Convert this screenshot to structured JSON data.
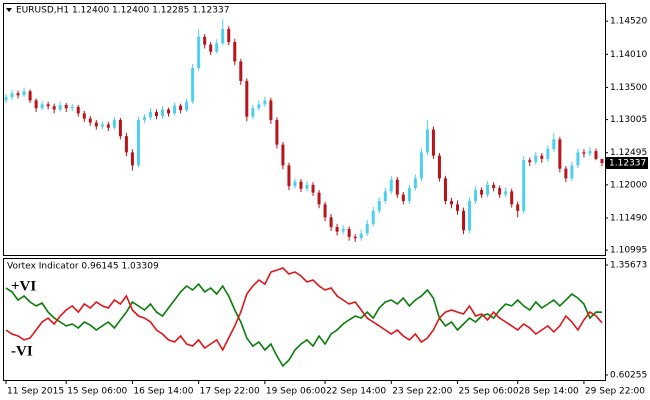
{
  "chart_data": [
    {
      "type": "candlestick",
      "title": "EURUSD,H1  1.12400 1.12400 1.12285 1.12337",
      "up_color": "#4dcfee",
      "down_color": "#b8141a",
      "ylim": [
        1.1092,
        1.148
      ],
      "yticks": [
        {
          "value": 1.1452,
          "label": "1.14520"
        },
        {
          "value": 1.1401,
          "label": "1.14010"
        },
        {
          "value": 1.135,
          "label": "1.13500"
        },
        1.13005,
        1.12495,
        {
          "value": 1.12,
          "label": "1.12000"
        },
        {
          "value": 1.1149,
          "label": "1.11490"
        },
        1.10995
      ],
      "current_price": 1.12337,
      "categories": [
        "11 Sep 2015",
        null,
        null,
        null,
        null,
        null,
        null,
        null,
        null,
        null,
        "15 Sep 06:00",
        null,
        null,
        null,
        null,
        null,
        null,
        null,
        null,
        null,
        null,
        "16 Sep 14:00",
        null,
        null,
        null,
        null,
        null,
        null,
        null,
        null,
        null,
        null,
        "17 Sep 22:00",
        null,
        null,
        null,
        null,
        null,
        null,
        null,
        null,
        null,
        null,
        "19 Sep 06:00",
        null,
        null,
        null,
        null,
        null,
        null,
        null,
        null,
        null,
        "22 Sep 14:00",
        null,
        null,
        null,
        null,
        null,
        null,
        null,
        null,
        null,
        null,
        "23 Sep 22:00",
        null,
        null,
        null,
        null,
        null,
        null,
        null,
        null,
        null,
        null,
        "25 Sep 06:00",
        null,
        null,
        null,
        null,
        null,
        null,
        null,
        null,
        null,
        "28 Sep 14:00",
        null,
        null,
        null,
        null,
        null,
        null,
        null,
        null,
        null,
        null,
        "29 Sep 22:00",
        null,
        null,
        null
      ],
      "candles": [
        [
          1.133,
          1.134,
          1.1326,
          1.1335
        ],
        [
          1.1335,
          1.1346,
          1.1331,
          1.1341
        ],
        [
          1.1341,
          1.1345,
          1.1333,
          1.1338
        ],
        [
          1.1338,
          1.135,
          1.1335,
          1.1344
        ],
        [
          1.1344,
          1.1347,
          1.1326,
          1.133
        ],
        [
          1.133,
          1.1333,
          1.1312,
          1.1318
        ],
        [
          1.1318,
          1.1329,
          1.1315,
          1.1324
        ],
        [
          1.1324,
          1.1328,
          1.1316,
          1.1321
        ],
        [
          1.1321,
          1.1325,
          1.131,
          1.1316
        ],
        [
          1.1316,
          1.1328,
          1.1313,
          1.1323
        ],
        [
          1.1323,
          1.1326,
          1.1312,
          1.1318
        ],
        [
          1.1318,
          1.1325,
          1.1314,
          1.132
        ],
        [
          1.132,
          1.1323,
          1.1305,
          1.131
        ],
        [
          1.131,
          1.1314,
          1.1297,
          1.1302
        ],
        [
          1.1302,
          1.1306,
          1.1291,
          1.1296
        ],
        [
          1.1296,
          1.13,
          1.1285,
          1.129
        ],
        [
          1.129,
          1.1298,
          1.1286,
          1.1293
        ],
        [
          1.1293,
          1.1297,
          1.1283,
          1.1288
        ],
        [
          1.1288,
          1.1305,
          1.1285,
          1.13
        ],
        [
          1.13,
          1.1303,
          1.127,
          1.1275
        ],
        [
          1.1275,
          1.128,
          1.1244,
          1.125
        ],
        [
          1.125,
          1.1255,
          1.1222,
          1.123
        ],
        [
          1.123,
          1.1305,
          1.1227,
          1.13
        ],
        [
          1.13,
          1.1309,
          1.1295,
          1.1304
        ],
        [
          1.1304,
          1.1318,
          1.13,
          1.1312
        ],
        [
          1.1312,
          1.1316,
          1.1301,
          1.1306
        ],
        [
          1.1306,
          1.1321,
          1.1302,
          1.1316
        ],
        [
          1.1316,
          1.1319,
          1.1305,
          1.131
        ],
        [
          1.131,
          1.1327,
          1.1307,
          1.1322
        ],
        [
          1.1322,
          1.1325,
          1.131,
          1.1315
        ],
        [
          1.1315,
          1.1333,
          1.1312,
          1.1328
        ],
        [
          1.1328,
          1.1386,
          1.1325,
          1.138
        ],
        [
          1.138,
          1.144,
          1.1376,
          1.1428
        ],
        [
          1.1428,
          1.1432,
          1.141,
          1.1416
        ],
        [
          1.1416,
          1.142,
          1.14,
          1.1405
        ],
        [
          1.1405,
          1.1424,
          1.1402,
          1.1418
        ],
        [
          1.1418,
          1.1455,
          1.1415,
          1.144
        ],
        [
          1.144,
          1.1444,
          1.1415,
          1.142
        ],
        [
          1.142,
          1.1425,
          1.1384,
          1.139
        ],
        [
          1.139,
          1.1394,
          1.1354,
          1.136
        ],
        [
          1.136,
          1.1364,
          1.1298,
          1.1305
        ],
        [
          1.1305,
          1.1323,
          1.1301,
          1.1318
        ],
        [
          1.1318,
          1.133,
          1.1314,
          1.1324
        ],
        [
          1.1324,
          1.1336,
          1.132,
          1.133
        ],
        [
          1.133,
          1.1334,
          1.1294,
          1.13
        ],
        [
          1.13,
          1.1304,
          1.1256,
          1.1262
        ],
        [
          1.1262,
          1.1266,
          1.1224,
          1.123
        ],
        [
          1.123,
          1.1234,
          1.1192,
          1.1198
        ],
        [
          1.1198,
          1.121,
          1.1194,
          1.1205
        ],
        [
          1.1205,
          1.1209,
          1.1189,
          1.1194
        ],
        [
          1.1194,
          1.1206,
          1.119,
          1.12
        ],
        [
          1.12,
          1.1204,
          1.1183,
          1.1188
        ],
        [
          1.1188,
          1.1192,
          1.1164,
          1.117
        ],
        [
          1.117,
          1.1174,
          1.1144,
          1.115
        ],
        [
          1.115,
          1.1155,
          1.1129,
          1.1135
        ],
        [
          1.1135,
          1.114,
          1.1122,
          1.1128
        ],
        [
          1.1128,
          1.1138,
          1.1124,
          1.1132
        ],
        [
          1.1132,
          1.1136,
          1.1114,
          1.112
        ],
        [
          1.112,
          1.1124,
          1.1112,
          1.1118
        ],
        [
          1.1118,
          1.1131,
          1.1114,
          1.1125
        ],
        [
          1.1125,
          1.1146,
          1.1121,
          1.114
        ],
        [
          1.114,
          1.1166,
          1.1136,
          1.116
        ],
        [
          1.116,
          1.1181,
          1.1156,
          1.1175
        ],
        [
          1.1175,
          1.1196,
          1.1171,
          1.119
        ],
        [
          1.119,
          1.1214,
          1.1186,
          1.1208
        ],
        [
          1.1208,
          1.1212,
          1.118,
          1.1185
        ],
        [
          1.1185,
          1.1189,
          1.117,
          1.1175
        ],
        [
          1.1175,
          1.12,
          1.1171,
          1.1195
        ],
        [
          1.1195,
          1.1216,
          1.1191,
          1.121
        ],
        [
          1.121,
          1.1256,
          1.1206,
          1.125
        ],
        [
          1.125,
          1.13,
          1.1246,
          1.1285
        ],
        [
          1.1285,
          1.129,
          1.124,
          1.1245
        ],
        [
          1.1245,
          1.1249,
          1.1205,
          1.121
        ],
        [
          1.121,
          1.1214,
          1.117,
          1.1175
        ],
        [
          1.1175,
          1.118,
          1.1164,
          1.117
        ],
        [
          1.117,
          1.1176,
          1.1154,
          1.116
        ],
        [
          1.116,
          1.1165,
          1.1124,
          1.113
        ],
        [
          1.113,
          1.1181,
          1.1126,
          1.1175
        ],
        [
          1.1175,
          1.1198,
          1.1171,
          1.1192
        ],
        [
          1.1192,
          1.1196,
          1.118,
          1.1185
        ],
        [
          1.1185,
          1.1206,
          1.1181,
          1.12
        ],
        [
          1.12,
          1.1204,
          1.119,
          1.1195
        ],
        [
          1.1195,
          1.1199,
          1.118,
          1.1185
        ],
        [
          1.1185,
          1.1196,
          1.1181,
          1.119
        ],
        [
          1.119,
          1.1194,
          1.1165,
          1.117
        ],
        [
          1.117,
          1.1174,
          1.115,
          1.116
        ],
        [
          1.116,
          1.1244,
          1.1156,
          1.1238
        ],
        [
          1.1238,
          1.1242,
          1.1229,
          1.1235
        ],
        [
          1.1235,
          1.1251,
          1.1231,
          1.1245
        ],
        [
          1.1245,
          1.1249,
          1.1234,
          1.124
        ],
        [
          1.124,
          1.1261,
          1.1236,
          1.1255
        ],
        [
          1.1255,
          1.128,
          1.1251,
          1.127
        ],
        [
          1.127,
          1.1274,
          1.1219,
          1.1225
        ],
        [
          1.1225,
          1.1229,
          1.1204,
          1.121
        ],
        [
          1.121,
          1.1236,
          1.1206,
          1.123
        ],
        [
          1.123,
          1.1256,
          1.1226,
          1.125
        ],
        [
          1.125,
          1.1255,
          1.1242,
          1.1248
        ],
        [
          1.1248,
          1.1258,
          1.1244,
          1.1252
        ],
        [
          1.1252,
          1.1256,
          1.1238,
          1.124
        ],
        [
          1.124,
          1.124,
          1.12285,
          1.12337
        ]
      ]
    },
    {
      "type": "line",
      "title": "Vortex Indicator 0.96145 1.03309",
      "ylim": [
        0.5683,
        1.4047
      ],
      "yticks": [
        1.35673,
        0.60255
      ],
      "series": [
        {
          "name": "+VI",
          "color": "#0a7d0a",
          "values": [
            1.199,
            1.172,
            1.117,
            1.144,
            1.103,
            1.076,
            1.096,
            1.034,
            0.993,
            0.966,
            0.939,
            0.952,
            0.925,
            0.966,
            0.945,
            0.911,
            0.939,
            0.966,
            0.925,
            0.98,
            1.034,
            1.103,
            1.076,
            1.048,
            1.089,
            1.034,
            1.007,
            1.062,
            1.117,
            1.172,
            1.213,
            1.185,
            1.226,
            1.172,
            1.199,
            1.158,
            1.213,
            1.144,
            1.048,
            0.966,
            0.856,
            0.801,
            0.829,
            0.774,
            0.815,
            0.733,
            0.664,
            0.705,
            0.774,
            0.815,
            0.843,
            0.801,
            0.87,
            0.815,
            0.884,
            0.911,
            0.952,
            0.98,
            1.007,
            0.993,
            1.034,
            0.993,
            1.062,
            1.103,
            1.117,
            1.089,
            1.13,
            1.076,
            1.117,
            1.144,
            1.185,
            1.13,
            0.993,
            0.939,
            0.966,
            0.911,
            0.952,
            0.993,
            0.966,
            1.007,
            1.021,
            0.993,
            1.048,
            1.089,
            1.076,
            1.117,
            1.076,
            1.048,
            1.103,
            1.062,
            1.089,
            1.117,
            1.076,
            1.117,
            1.158,
            1.13,
            1.089,
            0.993,
            1.034,
            1.03309
          ]
        },
        {
          "name": "-VI",
          "color": "#e0161b",
          "values": [
            0.911,
            0.884,
            0.87,
            0.843,
            0.856,
            0.911,
            0.966,
            0.993,
            0.952,
            1.007,
            1.048,
            1.076,
            1.034,
            1.089,
            1.062,
            1.103,
            1.076,
            1.062,
            1.117,
            1.089,
            1.144,
            1.048,
            1.007,
            0.993,
            0.966,
            0.911,
            0.884,
            0.843,
            0.829,
            0.87,
            0.815,
            0.801,
            0.843,
            0.788,
            0.815,
            0.843,
            0.774,
            0.856,
            0.939,
            1.034,
            1.158,
            1.213,
            1.254,
            1.226,
            1.309,
            1.322,
            1.336,
            1.295,
            1.309,
            1.281,
            1.24,
            1.254,
            1.213,
            1.185,
            1.199,
            1.144,
            1.117,
            1.089,
            1.103,
            1.048,
            0.993,
            0.966,
            0.939,
            0.911,
            0.884,
            0.911,
            0.87,
            0.843,
            0.884,
            0.829,
            0.856,
            0.911,
            0.993,
            1.034,
            1.048,
            1.034,
            1.021,
            1.076,
            1.007,
            1.021,
            0.98,
            1.034,
            0.993,
            0.966,
            0.939,
            0.911,
            0.952,
            0.925,
            0.884,
            0.911,
            0.939,
            0.898,
            0.939,
            1.007,
            0.966,
            0.911,
            0.98,
            1.034,
            1.007,
            0.96145
          ]
        }
      ]
    }
  ]
}
